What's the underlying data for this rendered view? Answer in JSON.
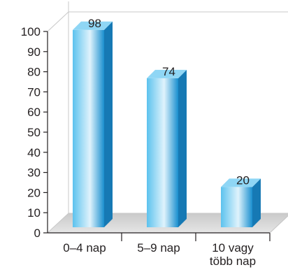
{
  "chart_data": {
    "type": "bar",
    "style": "3d-column",
    "categories": [
      "0–4 nap",
      "5–9 nap",
      "10 vagy|több nap"
    ],
    "values": [
      98,
      74,
      20
    ],
    "ylim": [
      0,
      100
    ],
    "yticks": [
      0,
      10,
      20,
      30,
      40,
      50,
      60,
      70,
      80,
      90,
      100
    ],
    "grid": false,
    "legend": "none",
    "colors": {
      "bar_front_light": "#dff3fc",
      "bar_front_mid": "#5cc2ee",
      "bar_front_dark": "#1a8fcf",
      "bar_side": "#1679b4",
      "bar_top": "#8fd6f5",
      "wall": "#ffffff",
      "floor": "#dcdcdc",
      "edge": "#c8c8c8",
      "axis": "#231f20"
    }
  }
}
